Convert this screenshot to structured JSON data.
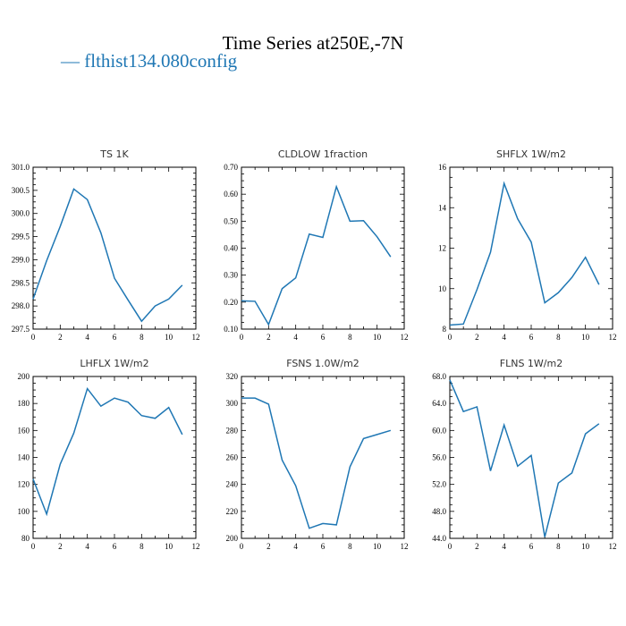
{
  "title": "Time Series at250E,-7N",
  "legend": {
    "label": "— flthist134.080config",
    "color": "#1f77b4"
  },
  "chart_data": [
    {
      "type": "line",
      "title": "TS   1K",
      "x": [
        0,
        1,
        2,
        3,
        4,
        5,
        6,
        7,
        8,
        9,
        10,
        11
      ],
      "values": [
        298.15,
        298.98,
        299.72,
        300.53,
        300.3,
        299.58,
        298.6,
        298.13,
        297.67,
        298.0,
        298.15,
        298.45
      ],
      "xlim": [
        0,
        12
      ],
      "xticks": [
        "0",
        "2",
        "4",
        "6",
        "8",
        "10",
        "12"
      ],
      "ylim": [
        297.5,
        301.0
      ],
      "yticks": [
        "297.5",
        "298.0",
        "298.5",
        "299.0",
        "299.5",
        "300.0",
        "300.5",
        "301.0"
      ]
    },
    {
      "type": "line",
      "title": "CLDLOW   1fraction",
      "x": [
        0,
        1,
        2,
        3,
        4,
        5,
        6,
        7,
        8,
        9,
        10,
        11
      ],
      "values": [
        0.205,
        0.203,
        0.117,
        0.25,
        0.29,
        0.452,
        0.44,
        0.628,
        0.5,
        0.502,
        0.442,
        0.368
      ],
      "xlim": [
        0,
        12
      ],
      "xticks": [
        "0",
        "2",
        "4",
        "6",
        "8",
        "10",
        "12"
      ],
      "ylim": [
        0.1,
        0.7
      ],
      "yticks": [
        "0.10",
        "0.20",
        "0.30",
        "0.40",
        "0.50",
        "0.60",
        "0.70"
      ]
    },
    {
      "type": "line",
      "title": "SHFLX   1W/m2",
      "x": [
        0,
        1,
        2,
        3,
        4,
        5,
        6,
        7,
        8,
        9,
        10,
        11
      ],
      "values": [
        8.2,
        8.25,
        9.95,
        11.8,
        15.2,
        13.45,
        12.3,
        9.3,
        9.8,
        10.55,
        11.55,
        10.2
      ],
      "xlim": [
        0,
        12
      ],
      "xticks": [
        "0",
        "2",
        "4",
        "6",
        "8",
        "10",
        "12"
      ],
      "ylim": [
        8,
        16
      ],
      "yticks": [
        "8",
        "10",
        "12",
        "14",
        "16"
      ]
    },
    {
      "type": "line",
      "title": "LHFLX   1W/m2",
      "x": [
        0,
        1,
        2,
        3,
        4,
        5,
        6,
        7,
        8,
        9,
        10,
        11
      ],
      "values": [
        124,
        98,
        135,
        158,
        191,
        178,
        184,
        181,
        171,
        169,
        177,
        157
      ],
      "xlim": [
        0,
        12
      ],
      "xticks": [
        "0",
        "2",
        "4",
        "6",
        "8",
        "10",
        "12"
      ],
      "ylim": [
        80,
        200
      ],
      "yticks": [
        "80",
        "100",
        "120",
        "140",
        "160",
        "180",
        "200"
      ]
    },
    {
      "type": "line",
      "title": "FSNS   1.0W/m2",
      "x": [
        0,
        1,
        2,
        3,
        4,
        5,
        6,
        7,
        8,
        9,
        10,
        11
      ],
      "values": [
        304,
        304,
        299.5,
        258,
        239,
        207.5,
        211,
        210,
        253,
        274,
        277,
        280
      ],
      "xlim": [
        0,
        12
      ],
      "xticks": [
        "0",
        "2",
        "4",
        "6",
        "8",
        "10",
        "12"
      ],
      "ylim": [
        200,
        320
      ],
      "yticks": [
        "200",
        "220",
        "240",
        "260",
        "280",
        "300",
        "320"
      ]
    },
    {
      "type": "line",
      "title": "FLNS   1W/m2",
      "x": [
        0,
        1,
        2,
        3,
        4,
        5,
        6,
        7,
        8,
        9,
        10,
        11
      ],
      "values": [
        67.5,
        62.8,
        63.5,
        54.0,
        60.8,
        54.7,
        56.3,
        44.2,
        52.2,
        53.7,
        59.5,
        61.0
      ],
      "xlim": [
        0,
        12
      ],
      "xticks": [
        "0",
        "2",
        "4",
        "6",
        "8",
        "10",
        "12"
      ],
      "ylim": [
        44,
        68
      ],
      "yticks": [
        "44.0",
        "48.0",
        "52.0",
        "56.0",
        "60.0",
        "64.0",
        "68.0"
      ]
    }
  ]
}
